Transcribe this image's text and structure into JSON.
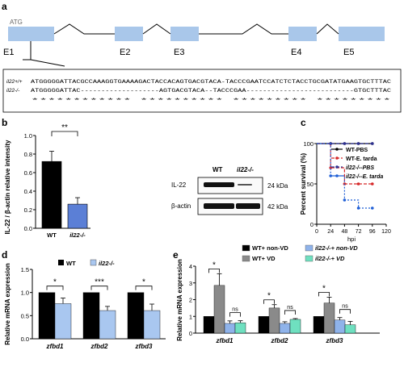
{
  "panel_a": {
    "panel_letter": "a",
    "start_codon": "ATG",
    "exons": [
      "E1",
      "E2",
      "E3",
      "E4",
      "E5"
    ],
    "wt_label": "il22+/+",
    "ko_label": "il22-/-",
    "wt_seq": "ATGGGGGATTACGCCAAAGGTGAAAAGACTACCACAGTGACGTACA-TACCCGAATCCATCTCTACCTGCGATATGAAGTGCTTTAC",
    "ko_seq": "ATGGGGGATTAC-------------------AGTGACGTACA--TACCCGAA--------------------------GTGCTTTAC",
    "conservation": "************                   **********   *********                           *********"
  },
  "panel_b": {
    "panel_letter": "b",
    "significance": "**",
    "ylabel": "IL-22 / β-actin relative intensity",
    "blot": {
      "col_wt": "WT",
      "col_ko": "il22-/-",
      "row1": "IL-22",
      "row2": "β-actin",
      "size1": "24 kDa",
      "size2": "42 kDa"
    }
  },
  "panel_c": {
    "panel_letter": "c",
    "ylabel": "Percent survival (%)",
    "xlabel": "hpi",
    "legend": [
      "WT-PBS",
      "WT-E. tarda",
      "il22-/--PBS",
      "il22-/--E. tarda"
    ]
  },
  "panel_d": {
    "panel_letter": "d",
    "ylabel": "Relative mRNA expression",
    "legend": [
      "WT",
      "il22-/-"
    ],
    "significance": [
      "*",
      "***",
      "*"
    ]
  },
  "panel_e": {
    "panel_letter": "e",
    "ylabel": "Relative mRNA expression",
    "legend": [
      "WT+ non-VD",
      "il22-/-+ non-VD",
      "WT+ VD",
      "il22-/-+ VD"
    ],
    "significance": [
      "*",
      "ns",
      "*",
      "ns",
      "*",
      "ns"
    ]
  },
  "chart_data": [
    {
      "type": "bar",
      "panel": "b",
      "categories": [
        "WT",
        "il22-/-"
      ],
      "values": [
        0.72,
        0.26
      ],
      "errors": [
        0.11,
        0.07
      ],
      "ylabel": "IL-22 / β-actin relative intensity",
      "ylim": [
        0.0,
        1.0
      ],
      "yticks": [
        0.0,
        0.2,
        0.4,
        0.6,
        0.8,
        1.0
      ],
      "colors": [
        "#000000",
        "#5b7fd6"
      ]
    },
    {
      "type": "line",
      "panel": "c",
      "xlabel": "hpi",
      "ylabel": "Percent survival (%)",
      "xlim": [
        0,
        120
      ],
      "ylim": [
        0,
        100
      ],
      "xticks": [
        0,
        24,
        48,
        72,
        96,
        120
      ],
      "yticks": [
        0,
        50,
        100
      ],
      "series": [
        {
          "name": "WT-PBS",
          "x": [
            0,
            24,
            48,
            72,
            96
          ],
          "y": [
            100,
            100,
            100,
            100,
            100
          ],
          "color": "#000000"
        },
        {
          "name": "WT-E. tarda",
          "x": [
            0,
            24,
            48,
            72,
            96
          ],
          "y": [
            100,
            70,
            50,
            50,
            50
          ],
          "color": "#d62728"
        },
        {
          "name": "il22-/--PBS",
          "x": [
            0,
            24,
            48,
            72,
            96
          ],
          "y": [
            100,
            100,
            100,
            100,
            100
          ],
          "color": "#2e3192"
        },
        {
          "name": "il22-/--E. tarda",
          "x": [
            0,
            24,
            48,
            72,
            96
          ],
          "y": [
            100,
            60,
            30,
            20,
            20
          ],
          "color": "#1f5fd6"
        }
      ]
    },
    {
      "type": "bar",
      "panel": "d",
      "categories": [
        "zfbd1",
        "zfbd2",
        "zfbd3"
      ],
      "ylabel": "Relative mRNA expression",
      "ylim": [
        0.0,
        1.5
      ],
      "yticks": [
        0.0,
        0.5,
        1.0,
        1.5
      ],
      "series": [
        {
          "name": "WT",
          "values": [
            1.0,
            1.0,
            1.0
          ],
          "errors": [
            0,
            0,
            0
          ],
          "color": "#000000"
        },
        {
          "name": "il22-/-",
          "values": [
            0.76,
            0.61,
            0.61
          ],
          "errors": [
            0.12,
            0.09,
            0.14
          ],
          "color": "#a9c7f0"
        }
      ]
    },
    {
      "type": "bar",
      "panel": "e",
      "categories": [
        "zfbd1",
        "zfbd2",
        "zfbd3"
      ],
      "ylabel": "Relative mRNA expression",
      "ylim": [
        0,
        4
      ],
      "yticks": [
        0,
        1,
        2,
        3,
        4
      ],
      "series": [
        {
          "name": "WT+ non-VD",
          "values": [
            1.0,
            1.0,
            1.0
          ],
          "errors": [
            0,
            0,
            0
          ],
          "color": "#000000"
        },
        {
          "name": "WT+ VD",
          "values": [
            2.85,
            1.5,
            1.8
          ],
          "errors": [
            0.7,
            0.2,
            0.35
          ],
          "color": "#8a8a8a"
        },
        {
          "name": "il22-/-+ non-VD",
          "values": [
            0.58,
            0.58,
            0.78
          ],
          "errors": [
            0.15,
            0.1,
            0.15
          ],
          "color": "#8fb3ea"
        },
        {
          "name": "il22-/-+ VD",
          "values": [
            0.62,
            0.82,
            0.5
          ],
          "errors": [
            0.12,
            0.05,
            0.2
          ],
          "color": "#6fe0c0"
        }
      ]
    }
  ]
}
